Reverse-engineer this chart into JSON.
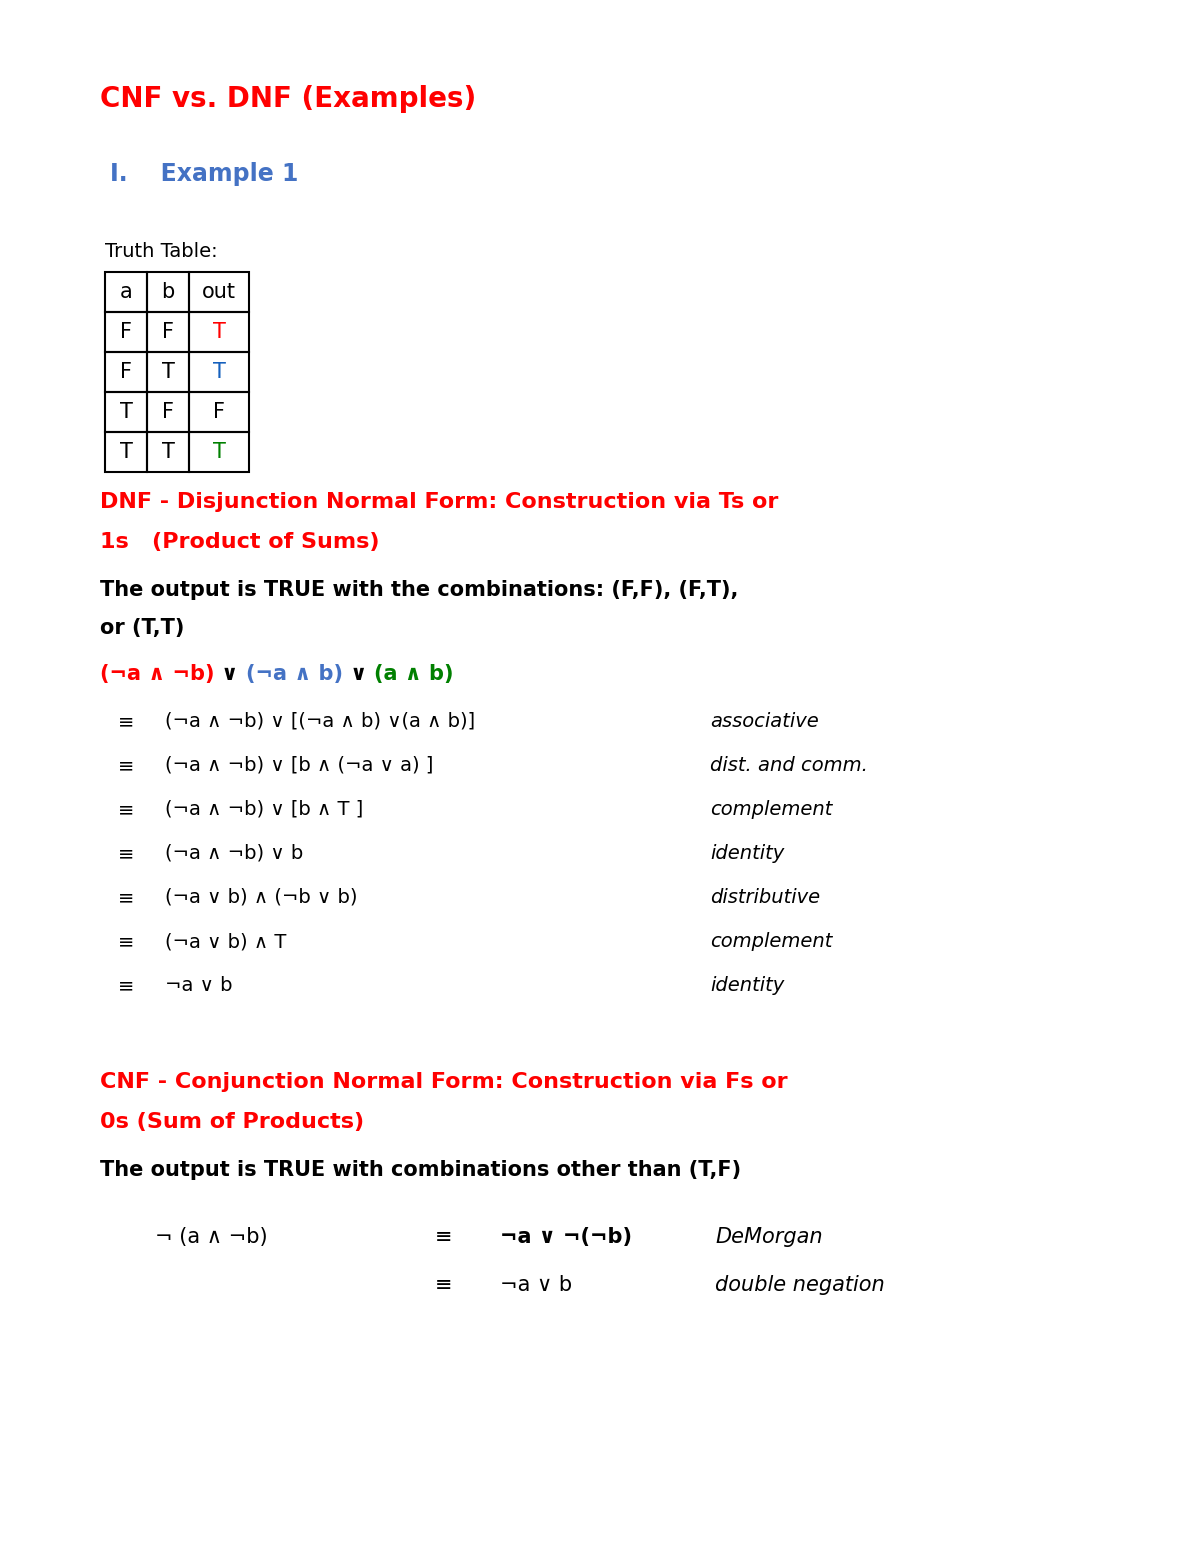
{
  "title": "CNF vs. DNF (Examples)",
  "title_color": "#FF0000",
  "section_header": "I.    Example 1",
  "section_header_color": "#4472C4",
  "truth_table_label": "Truth Table:",
  "truth_table_headers": [
    "a",
    "b",
    "out"
  ],
  "truth_table_rows": [
    [
      "F",
      "F",
      "T",
      "red"
    ],
    [
      "F",
      "T",
      "T",
      "#1560BD"
    ],
    [
      "T",
      "F",
      "F",
      "black"
    ],
    [
      "T",
      "T",
      "T",
      "#008000"
    ]
  ],
  "dnf_header_line1": "DNF - Disjunction Normal Form: Construction via Ts or",
  "dnf_header_line2": "1s   (Product of Sums)",
  "dnf_header_color": "#FF0000",
  "dnf_desc_line1": "The output is TRUE with the combinations: (F,F), (F,T),",
  "dnf_desc_line2": "or (T,T)",
  "dnf_formula_parts": [
    {
      "text": "(¬a ∧ ¬b)",
      "color": "#FF0000"
    },
    {
      "text": " ∨ ",
      "color": "#000000"
    },
    {
      "text": "(¬a ∧ b)",
      "color": "#4472C4"
    },
    {
      "text": " ∨ ",
      "color": "#000000"
    },
    {
      "text": "(a ∧ b)",
      "color": "#008000"
    }
  ],
  "dnf_steps": [
    {
      "formula": "(¬a ∧ ¬b) ∨ [(¬a ∧ b) ∨(a ∧ b)]",
      "rule": "associative"
    },
    {
      "formula": "(¬a ∧ ¬b) ∨ [b ∧ (¬a ∨ a) ]",
      "rule": "dist. and comm."
    },
    {
      "formula": "(¬a ∧ ¬b) ∨ [b ∧ T ]",
      "rule": "complement"
    },
    {
      "formula": "(¬a ∧ ¬b) ∨ b",
      "rule": "identity"
    },
    {
      "formula": "(¬a ∨ b) ∧ (¬b ∨ b)",
      "rule": "distributive"
    },
    {
      "formula": "(¬a ∨ b) ∧ T",
      "rule": "complement"
    },
    {
      "formula": "¬a ∨ b",
      "rule": "identity"
    }
  ],
  "cnf_header_line1": "CNF - Conjunction Normal Form: Construction via Fs or",
  "cnf_header_line2": "0s (Sum of Products)",
  "cnf_header_color": "#FF0000",
  "cnf_desc": "The output is TRUE with combinations other than (T,F)",
  "cnf_formula_left": "¬ (a ∧ ¬b)",
  "cnf_equiv_sym": "≡",
  "cnf_formula_equiv1": "¬a ∨ ¬(¬b)",
  "cnf_rule1": "DeMorgan",
  "cnf_formula_equiv2": "¬a ∨ b",
  "cnf_rule2": "double negation",
  "bg_color": "#FFFFFF",
  "fig_width": 12.0,
  "fig_height": 15.53,
  "dpi": 100
}
